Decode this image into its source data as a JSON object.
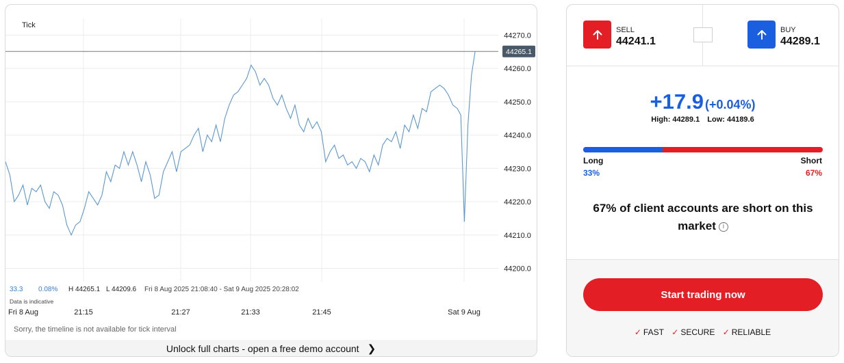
{
  "chart": {
    "interval_label": "Tick",
    "current_price": "44265.1",
    "y_ticks": [
      "44270.0",
      "44260.0",
      "44250.0",
      "44240.0",
      "44230.0",
      "44220.0",
      "44210.0",
      "44200.0"
    ],
    "x_ticks": [
      "Fri 8 Aug",
      "21:15",
      "21:27",
      "21:33",
      "21:45",
      "Sat 9 Aug"
    ],
    "stats": {
      "value1": "33.3",
      "value2": "0.08%",
      "high": "H 44265.1",
      "low": "L 44209.6",
      "range": "Fri 8 Aug 2025 21:08:40 - Sat 9 Aug 2025 20:28:02"
    },
    "data_note": "Data is indicative",
    "timeline_message": "Sorry, the timeline is not available for tick interval",
    "unlock_text": "Unlock full charts - open a free demo account",
    "line_color": "#5b97cf"
  },
  "chart_data": {
    "type": "line",
    "ylim": [
      44196,
      44275
    ],
    "series": [
      {
        "values": [
          44232,
          44228,
          44220,
          44222,
          44225,
          44219,
          44224,
          44223,
          44225,
          44220,
          44218,
          44223,
          44222,
          44219,
          44213,
          44210,
          44213,
          44214,
          44218,
          44223,
          44221,
          44219,
          44222,
          44229,
          44226,
          44231,
          44230,
          44235,
          44231,
          44235,
          44231,
          44226,
          44232,
          44228,
          44221,
          44222,
          44229,
          44232,
          44235,
          44229,
          44235,
          44236,
          44237,
          44240,
          44242,
          44235,
          44240,
          44238,
          44243,
          44238,
          44245,
          44249,
          44252,
          44253,
          44255,
          44257,
          44261,
          44259,
          44255,
          44257,
          44255,
          44251,
          44249,
          44252,
          44248,
          44245,
          44249,
          44243,
          44241,
          44245,
          44242,
          44244,
          44241,
          44232,
          44235,
          44237,
          44233,
          44234,
          44231,
          44232,
          44230,
          44233,
          44232,
          44229,
          44234,
          44231,
          44237,
          44239,
          44238,
          44241,
          44236,
          44243,
          44241,
          44246,
          44242,
          44248,
          44247,
          44253,
          44254,
          44255,
          44254,
          44252,
          44249,
          44248,
          44246,
          44214,
          44243,
          44258,
          44265
        ]
      }
    ]
  },
  "trade": {
    "sell": {
      "label": "SELL",
      "price": "44241.1"
    },
    "buy": {
      "label": "BUY",
      "price": "44289.1"
    },
    "change": "+17.9",
    "change_pct": "(+0.04%)",
    "high": "High: 44289.1",
    "low": "Low: 44189.6",
    "sentiment": {
      "long_label": "Long",
      "short_label": "Short",
      "long_pct": "33%",
      "short_pct": "67%",
      "long_value": 33,
      "sentence_pre": "67% of client accounts are",
      "sentence_bold": "short",
      "sentence_post": "on this market"
    },
    "cta": "Start trading now",
    "badges": [
      "FAST",
      "SECURE",
      "RELIABLE"
    ],
    "colors": {
      "sell": "#e31e24",
      "buy": "#1a5fe0"
    }
  }
}
